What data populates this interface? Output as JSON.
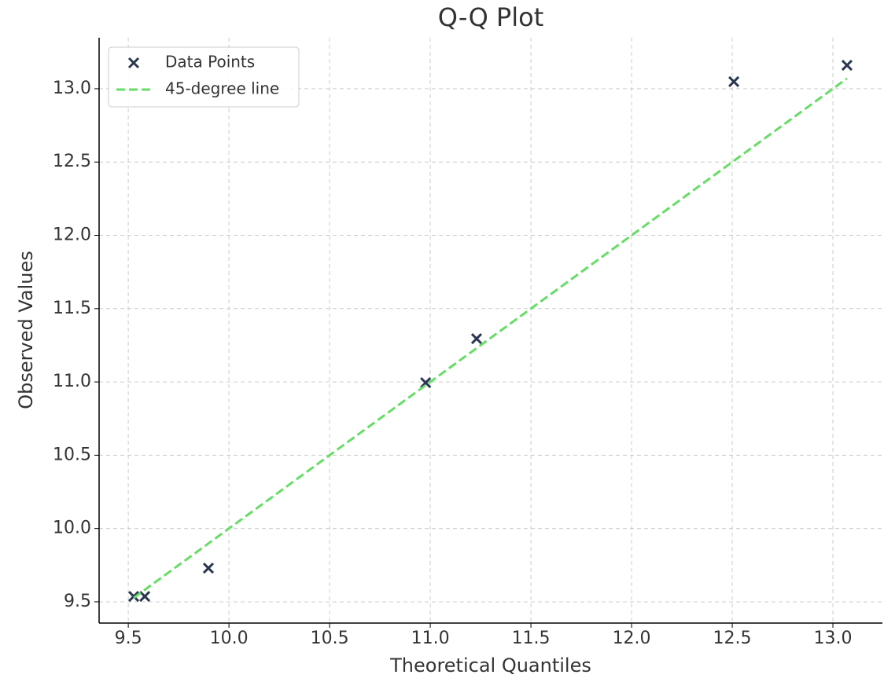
{
  "chart_data": {
    "type": "scatter",
    "title": "Q-Q Plot",
    "x_label": "Theoretical Quantiles",
    "y_label": "Observed Values",
    "series": [
      {
        "name": "Data Points",
        "type": "scatter",
        "marker": "x",
        "color": "#2b3650",
        "x": [
          9.527,
          9.582,
          9.898,
          10.977,
          11.23,
          12.508,
          13.07
        ],
        "values": [
          9.537,
          9.537,
          9.73,
          10.995,
          11.295,
          13.048,
          13.16
        ]
      },
      {
        "name": "45-degree line",
        "type": "line",
        "linestyle": "dashed",
        "color": "#66dd66",
        "x": [
          9.527,
          13.07
        ],
        "values": [
          9.527,
          13.07
        ]
      }
    ],
    "xlim": [
      9.355,
      13.246
    ],
    "ylim": [
      9.355,
      13.348
    ],
    "xticks": [
      9.5,
      {
        "value": 10,
        "label": "10.0"
      },
      10.5,
      {
        "value": 11,
        "label": "11.0"
      },
      11.5,
      {
        "value": 12,
        "label": "12.0"
      },
      12.5,
      {
        "value": 13,
        "label": "13.0"
      }
    ],
    "yticks": [
      9.5,
      {
        "value": 10,
        "label": "10.0"
      },
      10.5,
      {
        "value": 11,
        "label": "11.0"
      },
      11.5,
      {
        "value": 12,
        "label": "12.0"
      },
      12.5,
      {
        "value": 13,
        "label": "13.0"
      }
    ],
    "grid": true,
    "legend": "upper left"
  }
}
